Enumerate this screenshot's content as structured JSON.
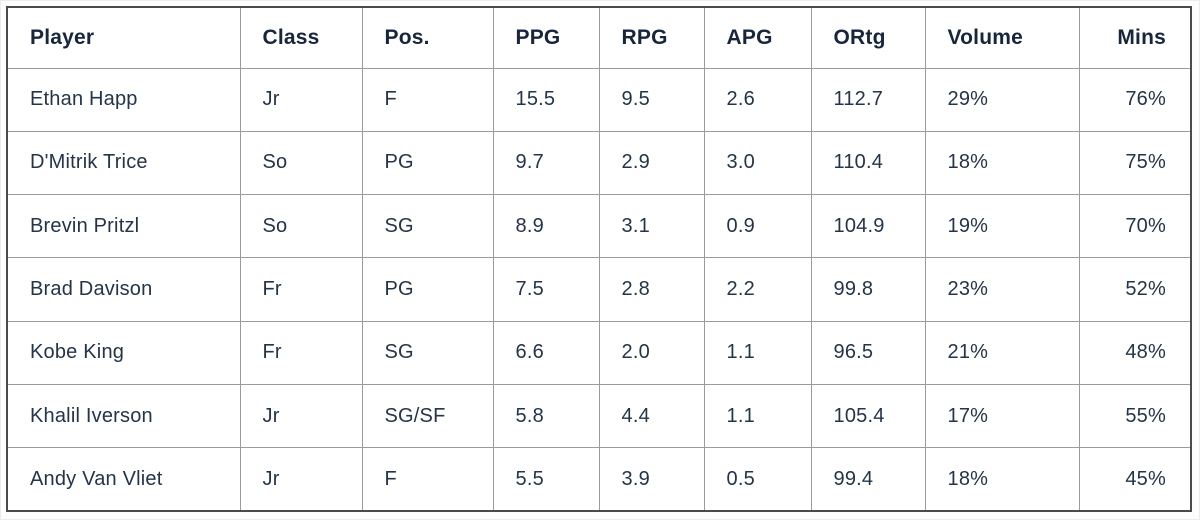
{
  "colors": {
    "text_header": "#17263c",
    "text_body": "#243449",
    "grid_line": "#9b9b9b",
    "outer_border": "#4a4a4a",
    "table_background": "#ffffff"
  },
  "chart_data": {
    "type": "table",
    "columns": [
      "Player",
      "Class",
      "Pos.",
      "PPG",
      "RPG",
      "APG",
      "ORtg",
      "Volume",
      "Mins"
    ],
    "rows": [
      [
        "Ethan Happ",
        "Jr",
        "F",
        "15.5",
        "9.5",
        "2.6",
        "112.7",
        "29%",
        "76%"
      ],
      [
        "D'Mitrik Trice",
        "So",
        "PG",
        "9.7",
        "2.9",
        "3.0",
        "110.4",
        "18%",
        "75%"
      ],
      [
        "Brevin Pritzl",
        "So",
        "SG",
        "8.9",
        "3.1",
        "0.9",
        "104.9",
        "19%",
        "70%"
      ],
      [
        "Brad Davison",
        "Fr",
        "PG",
        "7.5",
        "2.8",
        "2.2",
        "99.8",
        "23%",
        "52%"
      ],
      [
        "Kobe King",
        "Fr",
        "SG",
        "6.6",
        "2.0",
        "1.1",
        "96.5",
        "21%",
        "48%"
      ],
      [
        "Khalil Iverson",
        "Jr",
        "SG/SF",
        "5.8",
        "4.4",
        "1.1",
        "105.4",
        "17%",
        "55%"
      ],
      [
        "Andy Van Vliet",
        "Jr",
        "F",
        "5.5",
        "3.9",
        "0.5",
        "99.4",
        "18%",
        "45%"
      ]
    ]
  }
}
